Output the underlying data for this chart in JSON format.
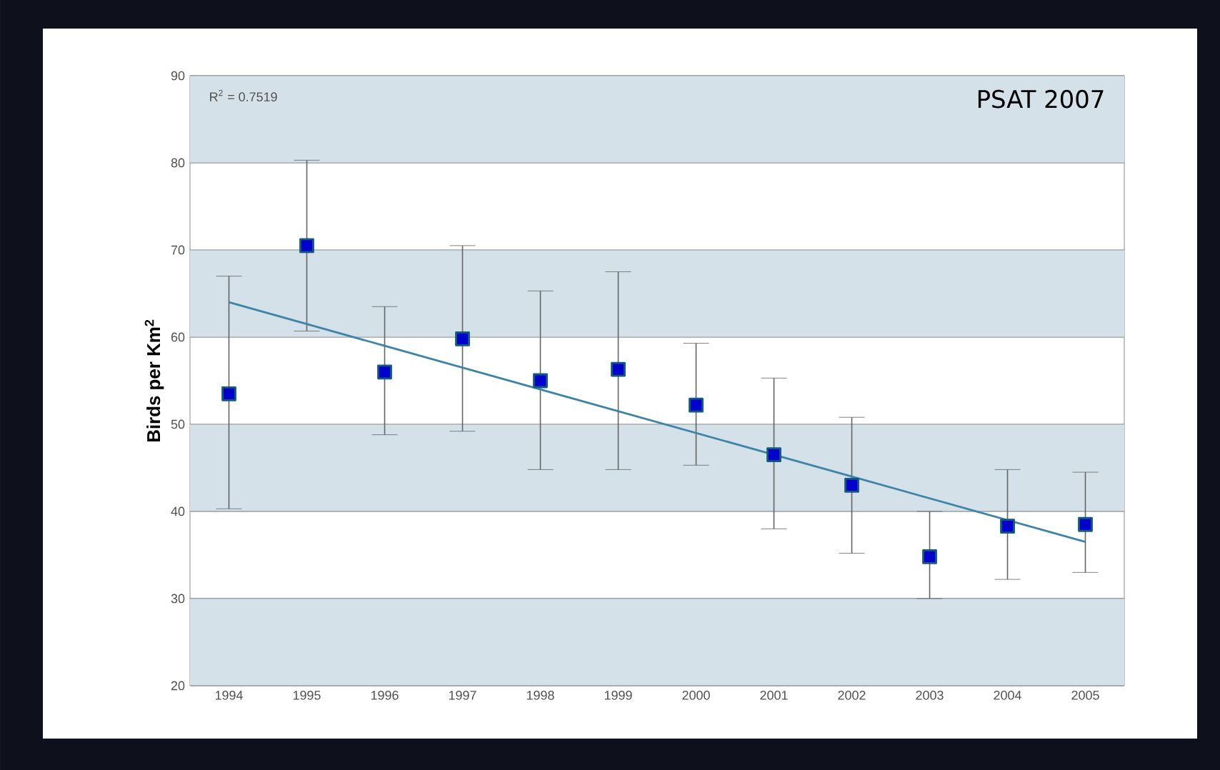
{
  "chart_data": {
    "type": "scatter",
    "categories": [
      "1994",
      "1995",
      "1996",
      "1997",
      "1998",
      "1999",
      "2000",
      "2001",
      "2002",
      "2003",
      "2004",
      "2005"
    ],
    "ylabel": "Birds per Km$^{2}$",
    "ylim": [
      20,
      90
    ],
    "yticks": [
      20,
      30,
      40,
      50,
      60,
      70,
      80,
      90
    ],
    "grid": "y",
    "marker": "square",
    "annotations": [
      "R$^{2}$ = 0.7519",
      "PSAT 2007"
    ],
    "bands": [
      {
        "axis": "y",
        "from": 20,
        "to": 30,
        "color": "#d5e1e8"
      },
      {
        "axis": "y",
        "from": 40,
        "to": 50,
        "color": "#d5e1e8"
      },
      {
        "axis": "y",
        "from": 60,
        "to": 70,
        "color": "#d5e1e8"
      },
      {
        "axis": "y",
        "from": 80,
        "to": 90,
        "color": "#d5e1e8"
      }
    ],
    "series": [
      {
        "color": "#135a7c",
        "values": [
          53.5,
          70.5,
          56,
          59.8,
          55,
          56.3,
          52.2,
          46.5,
          43,
          34.8,
          38.3,
          38.5
        ],
        "errors": [
          [
            40.3,
            67
          ],
          [
            60.7,
            80.3
          ],
          [
            48.8,
            63.5
          ],
          [
            49.2,
            70.5
          ],
          [
            44.8,
            65.3
          ],
          [
            44.8,
            67.5
          ],
          [
            45.3,
            59.3
          ],
          [
            38,
            55.3
          ],
          [
            35.2,
            50.8
          ],
          [
            30,
            40
          ],
          [
            32.2,
            44.8
          ],
          [
            33,
            44.5
          ]
        ]
      },
      {
        "type": "line",
        "color": "#3d84a8",
        "marker": "none",
        "values": [
          64,
          61.5,
          59,
          56.5,
          54,
          51.5,
          49,
          46.5,
          44,
          41.5,
          39,
          36.5
        ]
      }
    ]
  }
}
